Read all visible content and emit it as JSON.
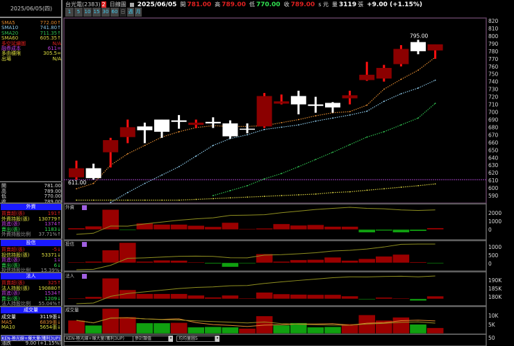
{
  "header": {
    "stock": "台光電(2383)",
    "badge": "2",
    "chart_kind": "日線圖",
    "date": "2025/06/05",
    "open_label": "開",
    "open": "781.00",
    "high_label": "高",
    "high": "789.00",
    "low_label": "低",
    "low": "770.00",
    "close_label": "收",
    "close": "789.00",
    "unit": "s 元",
    "vol_label": "量",
    "volume": "3119",
    "vol_unit": "張",
    "change": "+9.00 (+1.15%)"
  },
  "period_buttons": [
    "1",
    "5",
    "10",
    "15",
    "30",
    "60",
    "日",
    "週",
    "月"
  ],
  "left": {
    "date": "2025/06/05(四)",
    "ma": [
      {
        "label": "SMA5",
        "value": "772.00↑",
        "color": "#e08a30"
      },
      {
        "label": "SMA10",
        "value": "741.80↑",
        "color": "#8cc8e8"
      },
      {
        "label": "SMA20",
        "value": "711.35↑",
        "color": "#30c050"
      },
      {
        "label": "SMA60",
        "value": "605.35↑",
        "color": "#d8d040"
      },
      {
        "label": "多空延續圖",
        "value": "N/A",
        "color": "#e02020"
      },
      {
        "label": "融券成本",
        "value": "611=",
        "color": "#c040e0"
      },
      {
        "label": "多由穩限",
        "value": "305.5=",
        "color": "#e0e040"
      },
      {
        "label": "出場",
        "value": "N/A",
        "color": "#e0e040"
      }
    ],
    "ohlc": [
      {
        "label": "開",
        "value": "781.00"
      },
      {
        "label": "高",
        "value": "789.00"
      },
      {
        "label": "低",
        "value": "770.00"
      },
      {
        "label": "收",
        "value": "789.00"
      }
    ],
    "foreign": {
      "title": "外資",
      "rows": [
        {
          "label": "買賣超(張)",
          "value": "191↑",
          "color": "#e02020"
        },
        {
          "label": "外資持股(張)",
          "value": "130779↑",
          "color": "#e0e040"
        },
        {
          "label": "買進(張)",
          "value": "1374↑",
          "color": "#c040e0"
        },
        {
          "label": "賣出(張)",
          "value": "1183↓",
          "color": "#30e050"
        },
        {
          "label": "外資持股比例",
          "value": "37.71%↑",
          "color": "#999"
        }
      ]
    },
    "trust": {
      "title": "投信",
      "rows": [
        {
          "label": "買賣超(張)",
          "value": "-5↓",
          "color": "#e02020"
        },
        {
          "label": "投信持股(張)",
          "value": "53371↓",
          "color": "#e0e040"
        },
        {
          "label": "買進(張)",
          "value": "1↓",
          "color": "#c040e0"
        },
        {
          "label": "賣出(張)",
          "value": "6↓",
          "color": "#30e050"
        },
        {
          "label": "投信持股比例",
          "value": "15.39%-",
          "color": "#999"
        }
      ]
    },
    "inst": {
      "title": "法人",
      "rows": [
        {
          "label": "買賣超(張)",
          "value": "325↑",
          "color": "#e02020"
        },
        {
          "label": "法人持股(張)",
          "value": "190880↑",
          "color": "#e0e040"
        },
        {
          "label": "買進(張)",
          "value": "1534↑",
          "color": "#c040e0"
        },
        {
          "label": "賣出(張)",
          "value": "1209↓",
          "color": "#30e050"
        },
        {
          "label": "法人持股比例",
          "value": "55.04%↑",
          "color": "#999"
        }
      ]
    },
    "volume": {
      "title": "成交量",
      "rows": [
        {
          "label": "成交量",
          "value": "3119張↓",
          "color": "#fff"
        },
        {
          "label": "MA5",
          "value": "6839張↓",
          "color": "#e08a30"
        },
        {
          "label": "MA10",
          "value": "5654張↓",
          "color": "#e0e040"
        }
      ]
    },
    "strategy": "KEN-極光線+爆大量(獲利3UP)",
    "change_label": "漲跌",
    "change_value": "9.00 (+1.15%)"
  },
  "bottom": {
    "strategy": "KEN-極光線+爆大量(獲利3UP)",
    "select1": "參計類值",
    "select2": "均均量圖5"
  },
  "chart_data": [
    {
      "type": "candlestick",
      "title": "",
      "ylim": [
        585,
        825
      ],
      "yticks": [
        "820",
        "810",
        "800",
        "790",
        "780",
        "770",
        "760",
        "750",
        "740",
        "730",
        "720",
        "710",
        "700",
        "690",
        "680",
        "670",
        "660",
        "650",
        "640",
        "630",
        "620",
        "610",
        "600",
        "590"
      ],
      "annotations": [
        {
          "text": "795.00",
          "candle": 20,
          "price": 795
        },
        {
          "text": "611.00",
          "candle": 0,
          "price": 611
        }
      ],
      "reference_line": 611,
      "ohlc": [
        [
          614,
          636,
          611,
          626
        ],
        [
          626,
          632,
          611,
          613
        ],
        [
          647,
          666,
          627,
          663
        ],
        [
          667,
          690,
          659,
          680
        ],
        [
          681,
          686,
          659,
          676
        ],
        [
          690,
          690,
          666,
          674
        ],
        [
          689,
          696,
          678,
          687
        ],
        [
          683,
          690,
          679,
          686
        ],
        [
          687,
          693,
          679,
          685
        ],
        [
          685,
          689,
          665,
          668
        ],
        [
          678,
          685,
          672,
          677
        ],
        [
          681,
          725,
          679,
          721
        ],
        [
          711,
          723,
          710,
          714
        ],
        [
          721,
          728,
          697,
          710
        ],
        [
          710,
          720,
          699,
          708
        ],
        [
          712,
          713,
          699,
          706
        ],
        [
          718,
          728,
          710,
          722
        ],
        [
          742,
          766,
          741,
          749
        ],
        [
          744,
          762,
          740,
          758
        ],
        [
          763,
          788,
          760,
          783
        ],
        [
          792,
          795,
          776,
          780
        ],
        [
          781,
          789,
          770,
          789
        ]
      ],
      "series": [
        {
          "name": "SMA5",
          "color": "#e08a30",
          "values": [
            599,
            606,
            630,
            645,
            656,
            667,
            674,
            679.5,
            682,
            681,
            681,
            682,
            686,
            690,
            695,
            699,
            700.5,
            709,
            730,
            743,
            755,
            772
          ]
        },
        {
          "name": "SMA10",
          "color": "#8cc8e8",
          "values": [
            null,
            null,
            581,
            594,
            606,
            617,
            628,
            642,
            656,
            665,
            670,
            677,
            680,
            683,
            688,
            692,
            696,
            701,
            714,
            724,
            731.5,
            741.8
          ]
        },
        {
          "name": "SMA20",
          "color": "#30c050",
          "values": [
            null,
            null,
            null,
            null,
            null,
            null,
            null,
            580,
            590,
            596.5,
            603,
            612,
            619,
            628,
            637.5,
            647,
            657,
            667,
            674,
            683,
            692,
            711.35
          ]
        },
        {
          "name": "SMA60",
          "color": "#d8d040",
          "values": [
            584,
            584,
            584,
            584,
            584,
            584,
            584,
            585,
            586,
            587,
            588,
            589,
            590,
            591,
            592,
            594,
            595,
            597,
            599,
            601,
            603,
            605.35
          ]
        }
      ]
    },
    {
      "type": "bar",
      "title": "外資",
      "yticks": [
        "2000",
        "1000",
        "0"
      ],
      "values": [
        170,
        390,
        2390,
        -50,
        750,
        610,
        610,
        470,
        330,
        830,
        80,
        140,
        670,
        500,
        560,
        360,
        360,
        -360,
        -140,
        -360,
        -190,
        191
      ]
    },
    {
      "type": "bar",
      "title": "投信",
      "yticks": [
        "1000",
        "500",
        "0"
      ],
      "values": [
        40,
        80,
        760,
        1330,
        80,
        150,
        140,
        40,
        -55,
        -250,
        -30,
        530,
        80,
        170,
        190,
        330,
        140,
        240,
        390,
        500,
        50,
        -5
      ]
    },
    {
      "type": "bar",
      "title": "法人",
      "yticks": [
        "190K",
        "185K",
        "180K"
      ],
      "values": [
        60,
        250,
        2470,
        1080,
        610,
        610,
        610,
        420,
        190,
        420,
        80,
        780,
        580,
        530,
        500,
        500,
        330,
        -30,
        170,
        80,
        -220,
        325
      ]
    },
    {
      "type": "bar",
      "title": "成交量",
      "yticks": [
        "10K",
        "5K"
      ],
      "values": [
        7300,
        4500,
        13900,
        9200,
        5800,
        5800,
        6000,
        3500,
        3700,
        3500,
        2800,
        9700,
        4600,
        5900,
        3500,
        3700,
        5300,
        10300,
        7300,
        9000,
        5100,
        3119
      ],
      "up": [
        1,
        0,
        1,
        1,
        0,
        0,
        1,
        0,
        0,
        0,
        1,
        1,
        0,
        0,
        0,
        0,
        1,
        1,
        1,
        1,
        0,
        1
      ]
    },
    {
      "type": "axis",
      "yticks": [
        "50"
      ]
    }
  ]
}
